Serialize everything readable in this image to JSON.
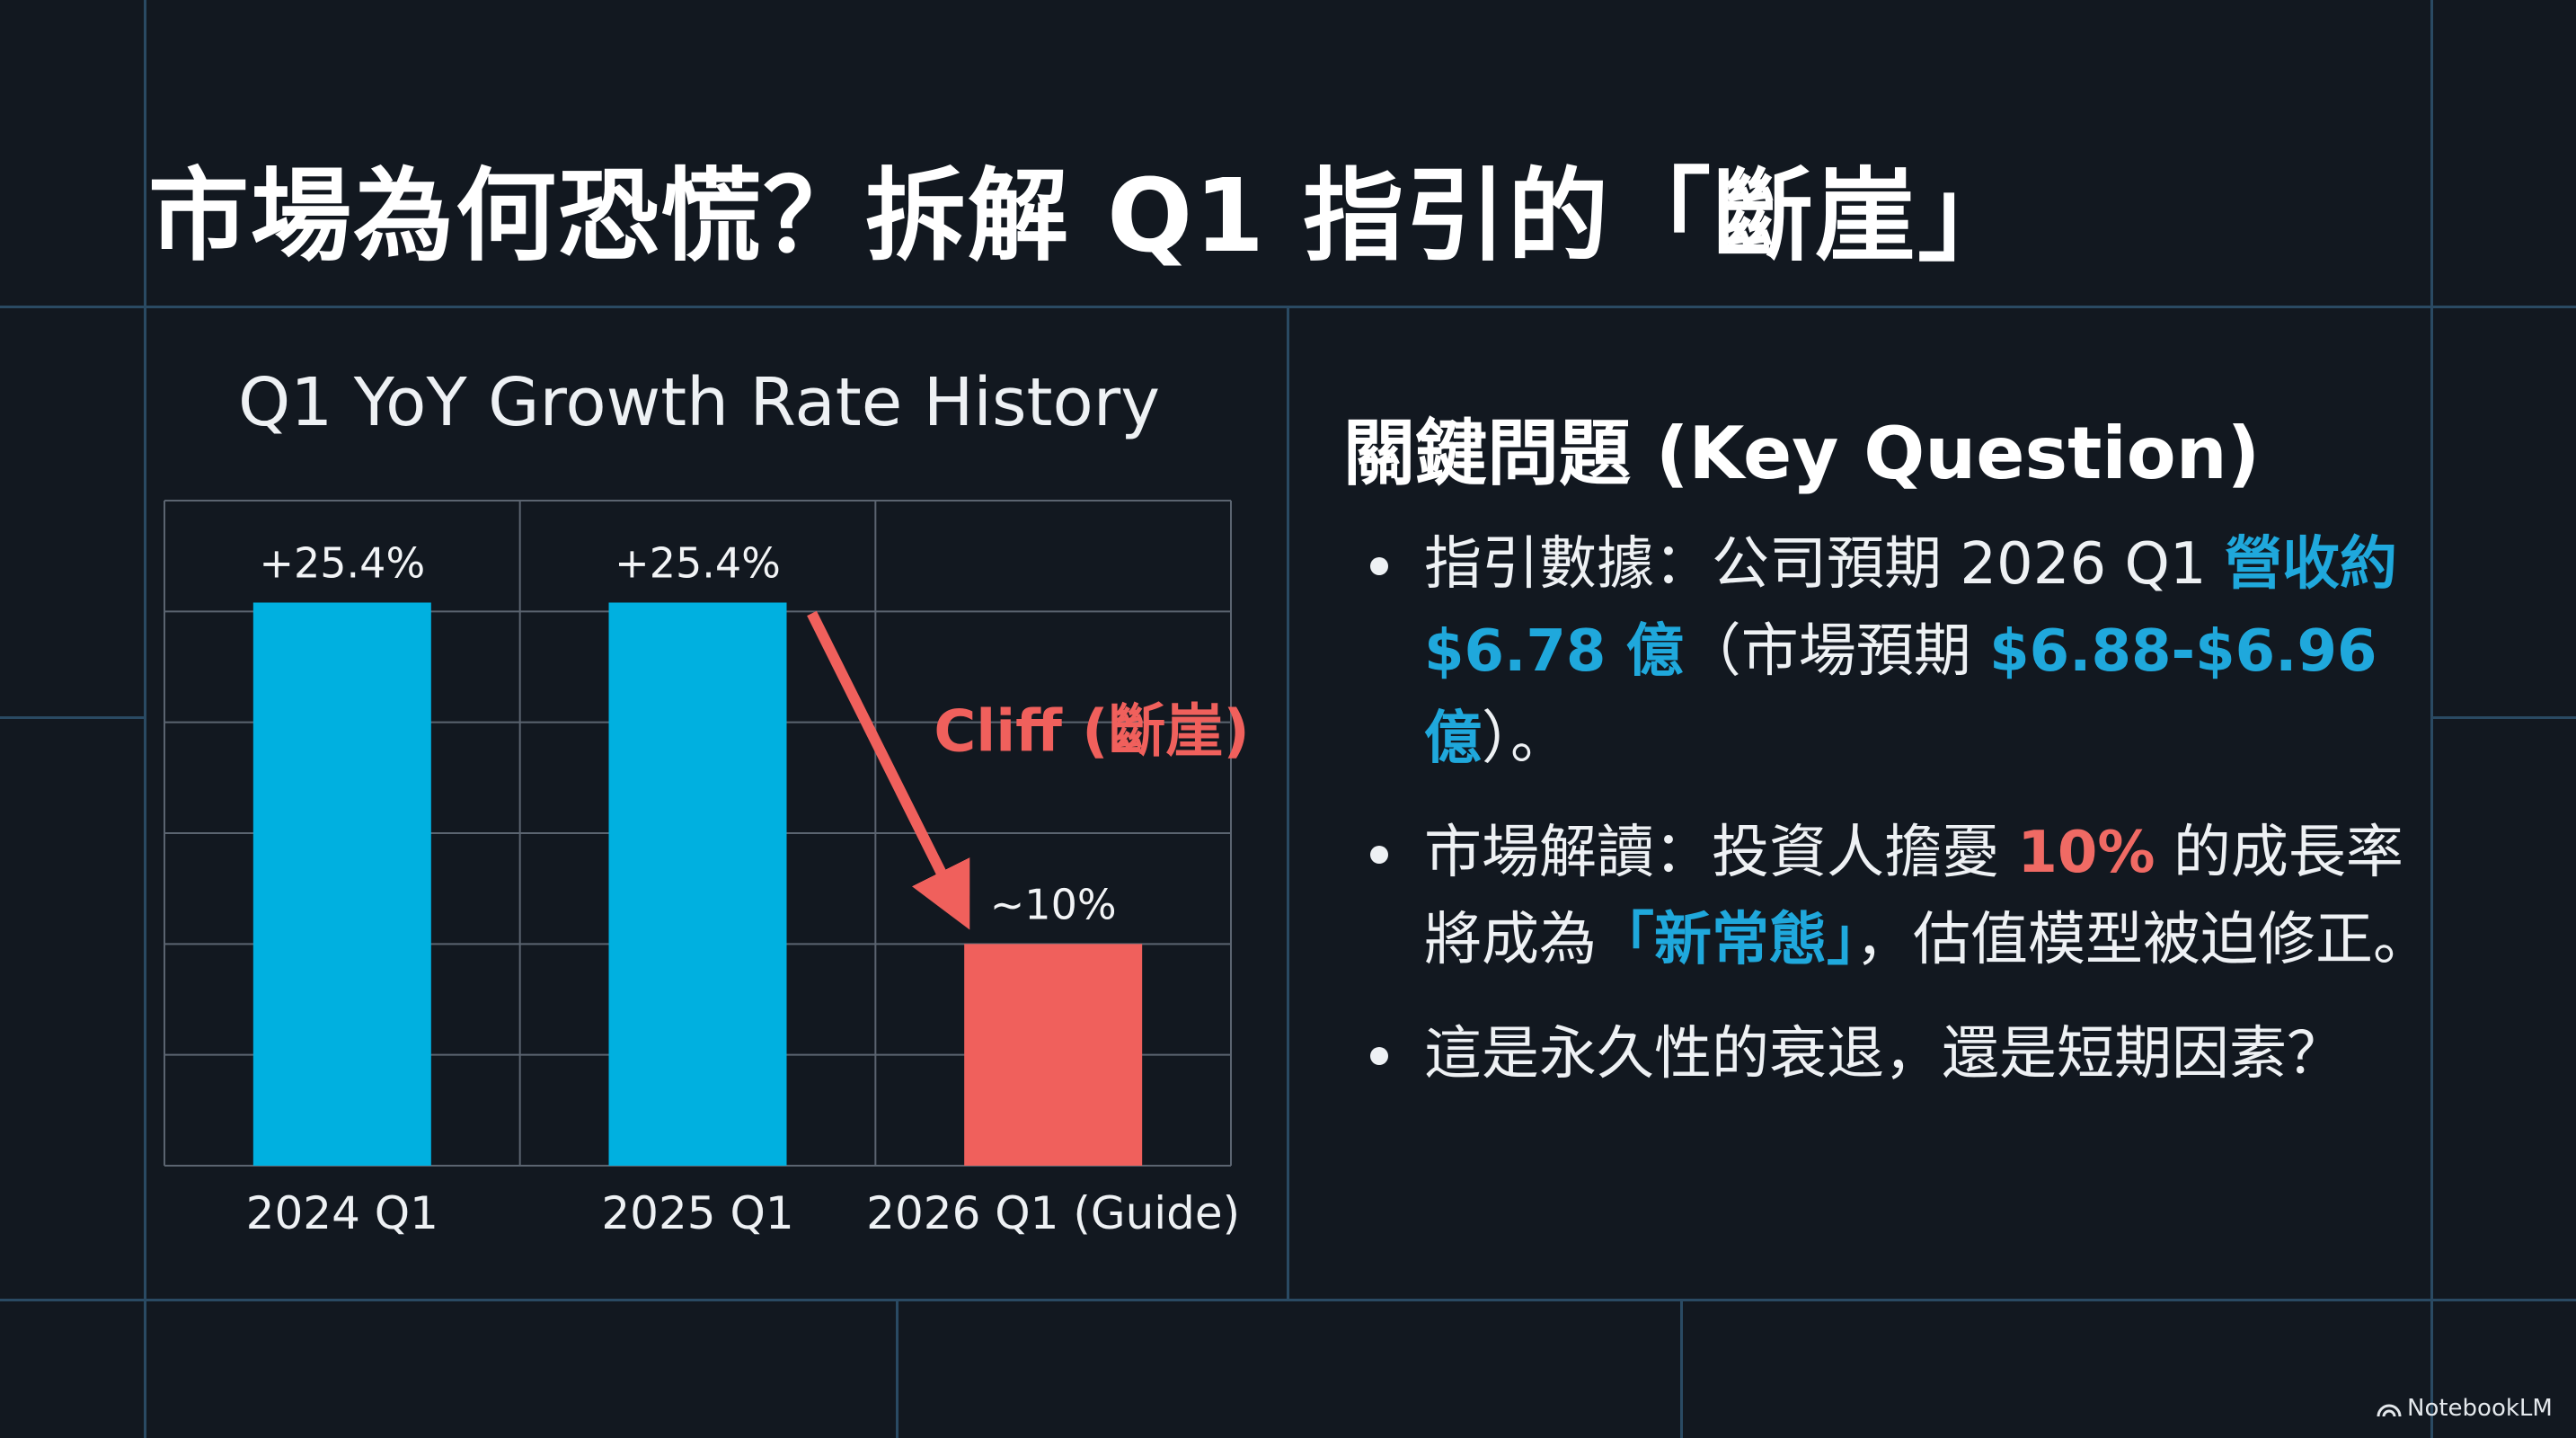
{
  "title": "市場為何恐慌？拆解 Q1 指引的「斷崖」",
  "chart_data": {
    "type": "bar",
    "title": "Q1 YoY Growth Rate History",
    "categories": [
      "2024 Q1",
      "2025 Q1",
      "2026 Q1 (Guide)"
    ],
    "values": [
      25.4,
      25.4,
      10
    ],
    "data_labels": [
      "+25.4%",
      "+25.4%",
      "~10%"
    ],
    "bar_colors": [
      "#00b0e0",
      "#00b0e0",
      "#f0605c"
    ],
    "ylim": [
      0,
      30
    ],
    "grid": true,
    "annotation": {
      "text": "Cliff (斷崖)",
      "color": "#f0605c"
    }
  },
  "key_question": {
    "title": "關鍵問題 (Key Question)",
    "items": [
      {
        "parts": [
          {
            "text": "指引數據：公司預期 2026 Q1 ",
            "style": "normal"
          },
          {
            "text": "營收約 $6.78 億",
            "style": "blue"
          },
          {
            "text": "（市場預期 ",
            "style": "normal"
          },
          {
            "text": "$6.88-$6.96 億",
            "style": "blue"
          },
          {
            "text": "）。",
            "style": "normal"
          }
        ]
      },
      {
        "parts": [
          {
            "text": "市場解讀：投資人擔憂 ",
            "style": "normal"
          },
          {
            "text": "10%",
            "style": "red"
          },
          {
            "text": " 的成長率將成為",
            "style": "normal"
          },
          {
            "text": "「新常態」",
            "style": "blue"
          },
          {
            "text": "，估值模型被迫修正。",
            "style": "normal"
          }
        ]
      },
      {
        "parts": [
          {
            "text": "這是永久性的衰退，還是短期因素？",
            "style": "normal"
          }
        ]
      }
    ]
  },
  "branding": {
    "text": "NotebookLM",
    "icon": "notebooklm-logo-icon"
  },
  "colors": {
    "background": "#121820",
    "accent_blue": "#1fa8dc",
    "accent_red": "#f06a64",
    "grid_line": "#2a4a63"
  }
}
